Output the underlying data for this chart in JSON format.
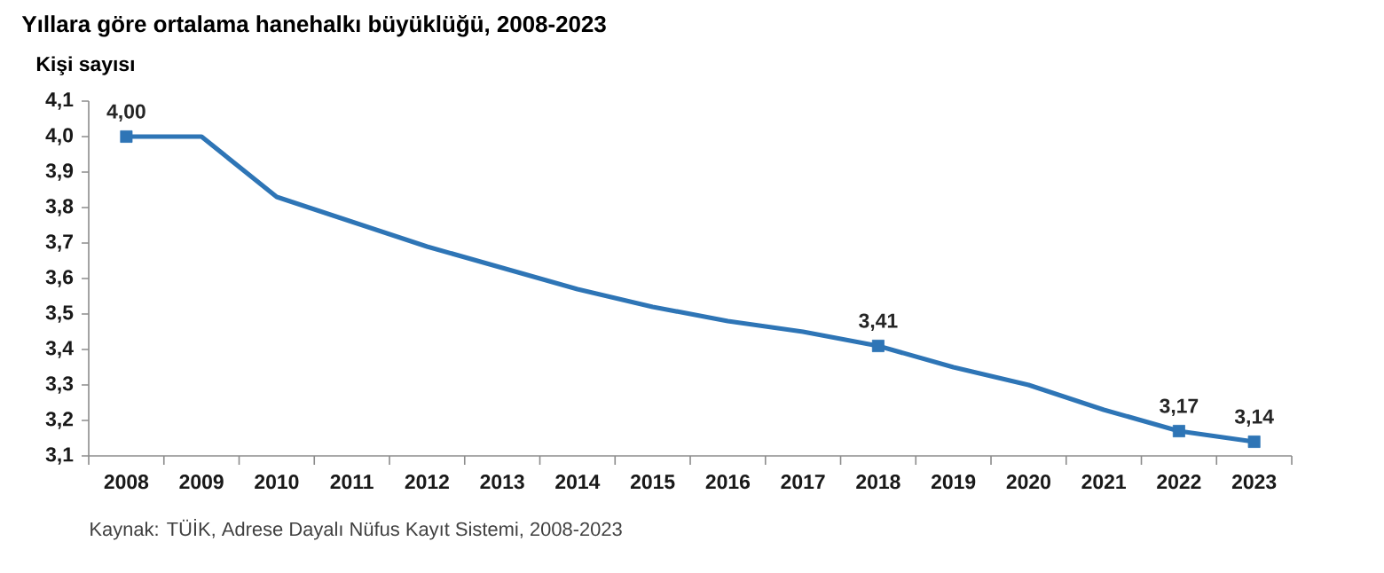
{
  "chart_data": {
    "type": "line",
    "title": "Yıllara göre ortalama hanehalkı büyüklüğü, 2008-2023",
    "ylabel": "Kişi sayısı",
    "annotations": [
      "Kaynak: TÜİK, Adrese Dayalı Nüfus Kayıt Sistemi, 2008-2023"
    ],
    "categories": [
      "2008",
      "2009",
      "2010",
      "2011",
      "2012",
      "2013",
      "2014",
      "2015",
      "2016",
      "2017",
      "2018",
      "2019",
      "2020",
      "2021",
      "2022",
      "2023"
    ],
    "series": [
      {
        "color": "#2e75b6",
        "line_style": "solid",
        "values": [
          4.0,
          4.0,
          3.83,
          3.76,
          3.69,
          3.63,
          3.57,
          3.52,
          3.48,
          3.45,
          3.41,
          3.35,
          3.3,
          3.23,
          3.17,
          3.14
        ]
      },
      {
        "type": "scatter",
        "color": "#2e75b6",
        "marker": "square",
        "values": [
          4.0,
          null,
          null,
          null,
          null,
          null,
          null,
          null,
          null,
          null,
          3.41,
          null,
          null,
          null,
          3.17,
          3.14
        ],
        "value_labels": [
          "4,00",
          null,
          null,
          null,
          null,
          null,
          null,
          null,
          null,
          null,
          "3,41",
          null,
          null,
          null,
          "3,17",
          "3,14"
        ]
      }
    ],
    "ylim": [
      3.1,
      4.1
    ],
    "yticks": [
      {
        "value": 3.1,
        "label": "3,1"
      },
      {
        "value": 3.2,
        "label": "3,2"
      },
      {
        "value": 3.3,
        "label": "3,3"
      },
      {
        "value": 3.4,
        "label": "3,4"
      },
      {
        "value": 3.5,
        "label": "3,5"
      },
      {
        "value": 3.6,
        "label": "3,6"
      },
      {
        "value": 3.7,
        "label": "3,7"
      },
      {
        "value": 3.8,
        "label": "3,8"
      },
      {
        "value": 3.9,
        "label": "3,9"
      },
      {
        "value": 4.0,
        "label": "4,0"
      },
      {
        "value": 4.1,
        "label": "4,1"
      }
    ]
  }
}
